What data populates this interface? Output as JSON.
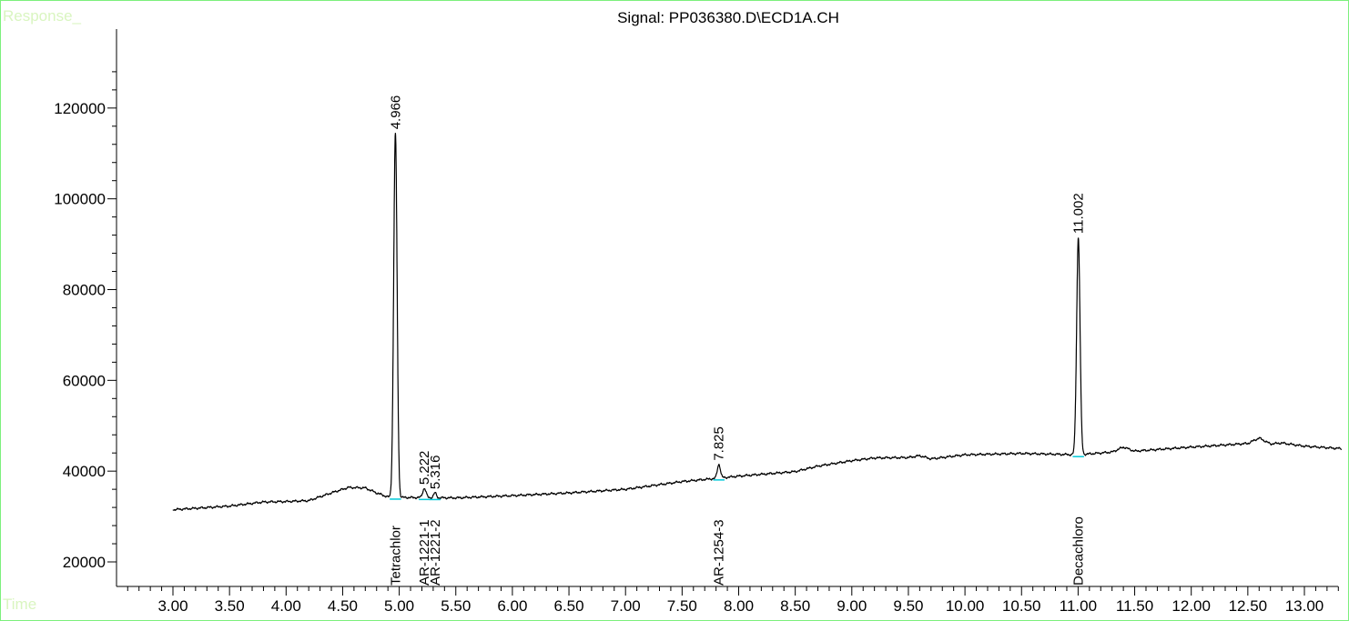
{
  "chart_data": {
    "type": "line",
    "title": "Signal: PP036380.D\\ECD1A.CH",
    "ylabel": "Response_",
    "xlabel": "Time",
    "xlim": [
      2.5,
      13.35
    ],
    "ylim": [
      15000,
      135000
    ],
    "x_ticks": [
      "3.00",
      "3.50",
      "4.00",
      "4.50",
      "5.00",
      "5.50",
      "6.00",
      "6.50",
      "7.00",
      "7.50",
      "8.00",
      "8.50",
      "9.00",
      "9.50",
      "10.00",
      "10.50",
      "11.00",
      "11.50",
      "12.00",
      "12.50",
      "13.00"
    ],
    "y_ticks": [
      "20000",
      "40000",
      "60000",
      "80000",
      "100000",
      "120000"
    ],
    "baseline": [
      [
        3.0,
        31500
      ],
      [
        3.5,
        32300
      ],
      [
        3.8,
        33200
      ],
      [
        4.0,
        33300
      ],
      [
        4.2,
        33500
      ],
      [
        4.4,
        35200
      ],
      [
        4.55,
        36400
      ],
      [
        4.7,
        36300
      ],
      [
        4.8,
        35200
      ],
      [
        4.9,
        34300
      ],
      [
        5.0,
        34200
      ],
      [
        5.5,
        34100
      ],
      [
        6.0,
        34600
      ],
      [
        6.5,
        35200
      ],
      [
        7.0,
        36000
      ],
      [
        7.5,
        37700
      ],
      [
        7.8,
        38400
      ],
      [
        8.0,
        38900
      ],
      [
        8.5,
        39900
      ],
      [
        8.7,
        41100
      ],
      [
        9.0,
        42300
      ],
      [
        9.2,
        42900
      ],
      [
        9.5,
        43000
      ],
      [
        9.6,
        43400
      ],
      [
        9.7,
        42700
      ],
      [
        10.0,
        43600
      ],
      [
        10.5,
        43900
      ],
      [
        11.0,
        43600
      ],
      [
        11.3,
        44200
      ],
      [
        11.4,
        45300
      ],
      [
        11.5,
        44400
      ],
      [
        12.0,
        45300
      ],
      [
        12.2,
        45600
      ],
      [
        12.5,
        46100
      ],
      [
        12.6,
        47300
      ],
      [
        12.7,
        46000
      ],
      [
        12.8,
        46200
      ],
      [
        13.0,
        45500
      ],
      [
        13.3,
        45000
      ]
    ],
    "peaks": [
      {
        "rt": 4.966,
        "label": "4.966",
        "height": 114500,
        "width": 0.022
      },
      {
        "rt": 5.222,
        "label": "5.222",
        "height": 36200,
        "width": 0.022
      },
      {
        "rt": 5.316,
        "label": "5.316",
        "height": 35200,
        "width": 0.018
      },
      {
        "rt": 7.825,
        "label": "7.825",
        "height": 41500,
        "width": 0.02
      },
      {
        "rt": 11.002,
        "label": "11.002",
        "height": 91500,
        "width": 0.022
      }
    ],
    "compounds": [
      {
        "rt": 4.966,
        "name": "Tetrachlor"
      },
      {
        "rt": 5.222,
        "name": "AR-1221-1"
      },
      {
        "rt": 5.316,
        "name": "AR-1221-2"
      },
      {
        "rt": 7.825,
        "name": "AR-1254-3"
      },
      {
        "rt": 11.002,
        "name": "Decachloro"
      }
    ],
    "grid": false,
    "colors": {
      "trace": "#000000",
      "baseline_mark": "#00c8d8",
      "frame": "#7cf07c",
      "corner_text": "#d9f5c0"
    }
  }
}
